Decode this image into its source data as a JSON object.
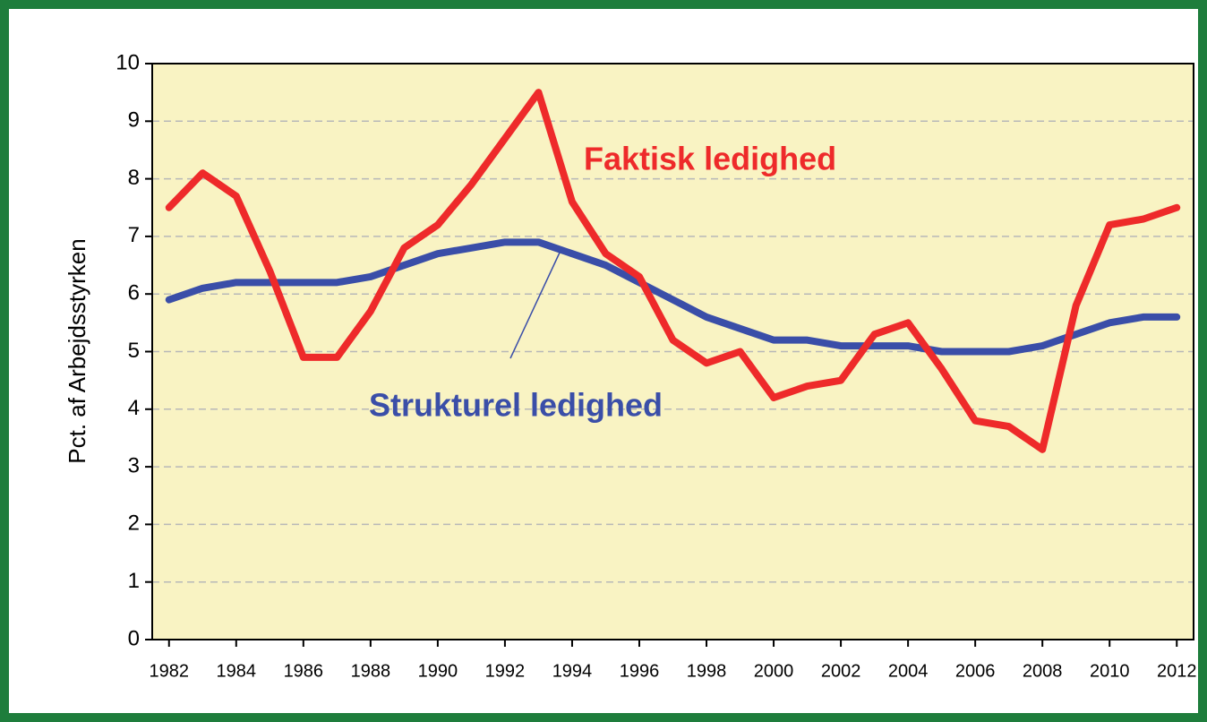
{
  "chart_data": {
    "type": "line",
    "y_label": "Pct. af Arbejdsstyrken",
    "x": [
      1982,
      1983,
      1984,
      1985,
      1986,
      1987,
      1988,
      1989,
      1990,
      1991,
      1992,
      1993,
      1994,
      1995,
      1996,
      1997,
      1998,
      1999,
      2000,
      2001,
      2002,
      2003,
      2004,
      2005,
      2006,
      2007,
      2008,
      2009,
      2010,
      2011,
      2012
    ],
    "series": [
      {
        "name": "Faktisk ledighed",
        "color": "#ee2a2a",
        "values": [
          7.5,
          8.1,
          7.7,
          6.4,
          4.9,
          4.9,
          5.7,
          6.8,
          7.2,
          7.9,
          8.7,
          9.5,
          7.6,
          6.7,
          6.3,
          5.2,
          4.8,
          5.0,
          4.2,
          4.4,
          4.5,
          5.3,
          5.5,
          4.7,
          3.8,
          3.7,
          3.3,
          5.8,
          7.2,
          7.3,
          7.5
        ]
      },
      {
        "name": "Strukturel ledighed",
        "color": "#3a4ea8",
        "values": [
          5.9,
          6.1,
          6.2,
          6.2,
          6.2,
          6.2,
          6.3,
          6.5,
          6.7,
          6.8,
          6.9,
          6.9,
          6.7,
          6.5,
          6.2,
          5.9,
          5.6,
          5.4,
          5.2,
          5.2,
          5.1,
          5.1,
          5.1,
          5.0,
          5.0,
          5.0,
          5.1,
          5.3,
          5.5,
          5.6,
          5.6
        ]
      }
    ],
    "xlim": [
      1981.5,
      2012.5
    ],
    "xticks": [
      1982,
      1984,
      1986,
      1988,
      1990,
      1992,
      1994,
      1996,
      1998,
      2000,
      2002,
      2004,
      2006,
      2008,
      2010,
      2012
    ],
    "ylim": [
      0,
      10
    ],
    "yticks": [
      0,
      1,
      2,
      3,
      4,
      5,
      6,
      7,
      8,
      9,
      10
    ],
    "grid": true
  }
}
